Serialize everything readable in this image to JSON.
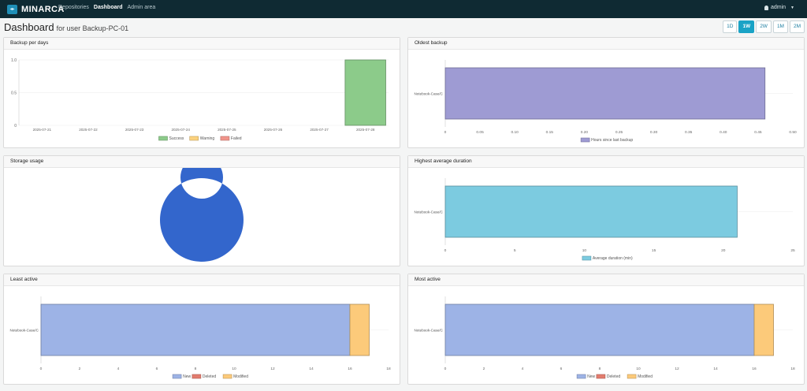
{
  "app": {
    "name": "MINARCA",
    "logo_glyph": "◂▸"
  },
  "nav": {
    "items": [
      {
        "label": "Repositories"
      },
      {
        "label": "Dashboard"
      },
      {
        "label": "Admin area"
      }
    ]
  },
  "user": {
    "name": "admin",
    "caret": "▼"
  },
  "page": {
    "title": "Dashboard",
    "subtitle": "for user Backup-PC-01"
  },
  "periods": [
    {
      "label": "1D"
    },
    {
      "label": "1W"
    },
    {
      "label": "2W"
    },
    {
      "label": "1M"
    },
    {
      "label": "2M"
    }
  ],
  "cards": {
    "backup_per_days": "Backup per days",
    "oldest_backup": "Oldest backup",
    "storage_usage": "Storage usage",
    "highest_avg_duration": "Highest average duration",
    "least_active": "Least active",
    "most_active": "Most active"
  },
  "chart_data": [
    {
      "id": "backup-per-days",
      "type": "bar",
      "title": "Backup per days",
      "categories": [
        "2025-07-21",
        "2025-07-22",
        "2025-07-23",
        "2025-07-24",
        "2025-07-25",
        "2025-07-26",
        "2025-07-27",
        "2025-07-28"
      ],
      "series": [
        {
          "name": "Success",
          "color": "#8ccb8a",
          "values": [
            0,
            0,
            0,
            0,
            0,
            0,
            0,
            1.0
          ]
        },
        {
          "name": "Warning",
          "color": "#fcd27e",
          "values": [
            0,
            0,
            0,
            0,
            0,
            0,
            0,
            0
          ]
        },
        {
          "name": "Failed",
          "color": "#f1948a",
          "values": [
            0,
            0,
            0,
            0,
            0,
            0,
            0,
            0
          ]
        }
      ],
      "ylim": [
        0,
        1.0
      ],
      "yticks": [
        "0",
        "0.5",
        "1.0"
      ],
      "legend": "bottom"
    },
    {
      "id": "oldest-backup",
      "type": "hbar",
      "title": "Oldest backup",
      "categories": [
        "Notebook-Case/C"
      ],
      "series": [
        {
          "name": "Hours since last backup",
          "color": "#9e9bd3",
          "values": [
            0.46
          ]
        }
      ],
      "xlim": [
        0,
        0.5
      ],
      "xticks": [
        "0",
        "0.05",
        "0.10",
        "0.15",
        "0.20",
        "0.25",
        "0.30",
        "0.35",
        "0.40",
        "0.45",
        "0.50"
      ],
      "legend": "bottom"
    },
    {
      "id": "storage-usage",
      "type": "pie",
      "title": "Storage usage",
      "slices": [
        {
          "value": 100,
          "color": "#3366cc"
        }
      ]
    },
    {
      "id": "highest-average-duration",
      "type": "hbar",
      "title": "Highest average duration",
      "categories": [
        "Notebook-Case/C"
      ],
      "series": [
        {
          "name": "Average duration (min)",
          "color": "#7ccbe0",
          "values": [
            21
          ]
        }
      ],
      "xlim": [
        0,
        25
      ],
      "xticks": [
        "0",
        "5",
        "10",
        "15",
        "20",
        "25"
      ],
      "legend": "bottom"
    },
    {
      "id": "least-active",
      "type": "hbar-stacked",
      "title": "Least active",
      "categories": [
        "Notebook-Case/C"
      ],
      "series": [
        {
          "name": "New",
          "color": "#9db3e6",
          "values": [
            16
          ]
        },
        {
          "name": "Deleted",
          "color": "#e37c6e",
          "values": [
            0
          ]
        },
        {
          "name": "Modified",
          "color": "#fcca7a",
          "values": [
            1
          ]
        }
      ],
      "xlim": [
        0,
        18
      ],
      "xticks": [
        "0",
        "2",
        "4",
        "6",
        "8",
        "10",
        "12",
        "14",
        "16",
        "18"
      ],
      "legend": "bottom"
    },
    {
      "id": "most-active",
      "type": "hbar-stacked",
      "title": "Most active",
      "categories": [
        "Notebook-Case/C"
      ],
      "series": [
        {
          "name": "New",
          "color": "#9db3e6",
          "values": [
            16
          ]
        },
        {
          "name": "Deleted",
          "color": "#e37c6e",
          "values": [
            0
          ]
        },
        {
          "name": "Modified",
          "color": "#fcca7a",
          "values": [
            1
          ]
        }
      ],
      "xlim": [
        0,
        18
      ],
      "xticks": [
        "0",
        "2",
        "4",
        "6",
        "8",
        "10",
        "12",
        "14",
        "16",
        "18"
      ],
      "legend": "bottom"
    }
  ]
}
